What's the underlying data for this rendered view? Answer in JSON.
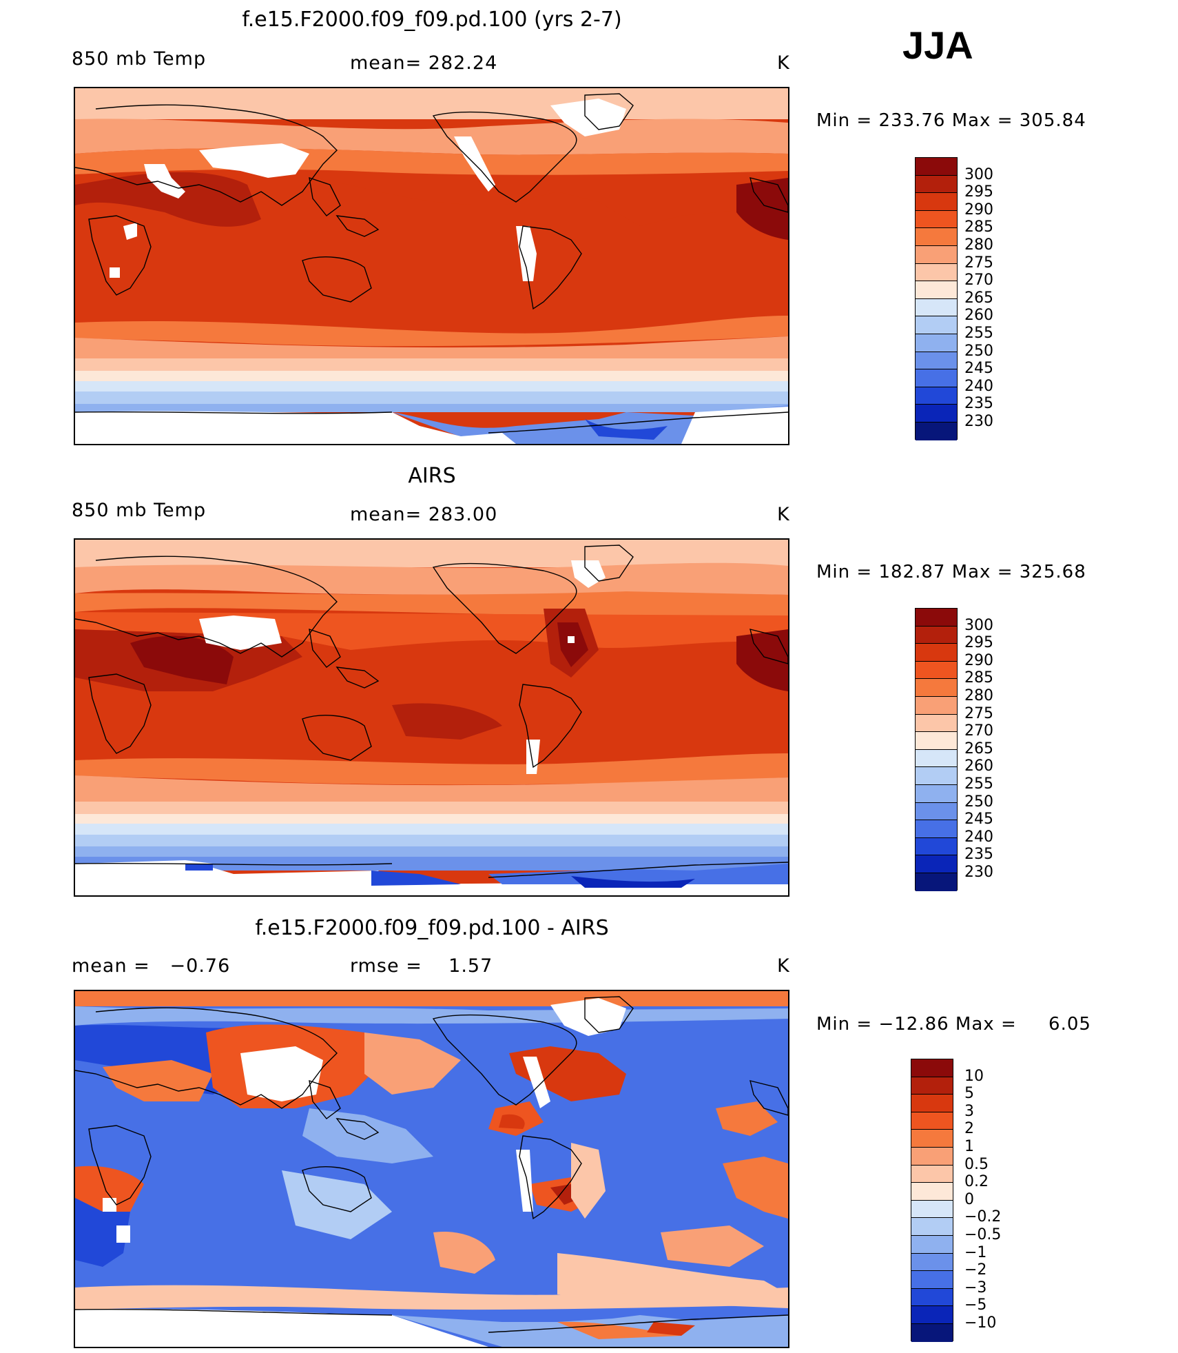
{
  "season": "JJA",
  "units_label": "K",
  "panels": [
    {
      "title": "f.e15.F2000.f09_f09.pd.100 (yrs 2-7)",
      "left_label": "850 mb Temp",
      "center_label": "mean= 282.24",
      "right_label": "K",
      "minmax": "Min = 233.76 Max = 305.84"
    },
    {
      "title": "AIRS",
      "left_label": "850 mb Temp",
      "center_label": "mean= 283.00",
      "right_label": "K",
      "minmax": "Min = 182.87 Max = 325.68"
    },
    {
      "title": "f.e15.F2000.f09_f09.pd.100 - AIRS",
      "left_label": "mean =   −0.76",
      "center_label": "rmse =    1.57",
      "right_label": "K",
      "minmax": "Min = −12.86 Max =     6.05"
    }
  ],
  "colorbar_temp": {
    "labels": [
      "300",
      "295",
      "290",
      "285",
      "280",
      "275",
      "270",
      "265",
      "260",
      "255",
      "250",
      "245",
      "240",
      "235",
      "230"
    ],
    "colors": [
      "#8b0a0a",
      "#b3200c",
      "#d8380f",
      "#ee5520",
      "#f5793d",
      "#f9a076",
      "#fcc6a9",
      "#fde8d8",
      "#d6e6f8",
      "#b2cdf4",
      "#8fb1ef",
      "#6b91ea",
      "#4770e6",
      "#2148d8",
      "#0a25b8",
      "#07167a"
    ]
  },
  "colorbar_diff": {
    "labels": [
      "10",
      "5",
      "3",
      "2",
      "1",
      "0.5",
      "0.2",
      "0",
      "−0.2",
      "−0.5",
      "−1",
      "−2",
      "−3",
      "−5",
      "−10"
    ],
    "colors": [
      "#8b0a0a",
      "#b3200c",
      "#d8380f",
      "#ee5520",
      "#f5793d",
      "#f9a076",
      "#fcc6a9",
      "#fde8d8",
      "#d6e6f8",
      "#b2cdf4",
      "#8fb1ef",
      "#6b91ea",
      "#4770e6",
      "#2148d8",
      "#0a25b8",
      "#07167a"
    ]
  },
  "map_field_palette": {
    "warm_dark": "#b3200c",
    "warm": "#d8380f",
    "warm_mid": "#ee5520",
    "warm_light": "#f5793d",
    "warm_pale": "#f9a076",
    "peach": "#fcc6a9",
    "cream": "#fde8d8",
    "cool_pale": "#d6e6f8",
    "cool_light": "#8fb1ef",
    "cool_mid": "#4770e6",
    "cool_dark": "#0a25b8",
    "missing": "#ffffff"
  }
}
